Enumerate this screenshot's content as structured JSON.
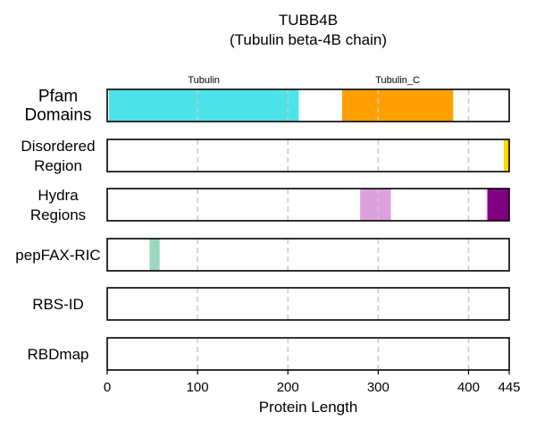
{
  "chart_data": {
    "type": "bar",
    "title": "TUBB4B",
    "subtitle": "(Tubulin beta-4B chain)",
    "xlabel": "Protein Length",
    "xlim": [
      0,
      445
    ],
    "xticks": [
      0,
      100,
      200,
      300,
      400,
      445
    ],
    "grid": {
      "vertical_dashed": [
        100,
        200,
        300,
        400
      ]
    },
    "tracks": [
      {
        "label_lines": [
          "Pfam",
          "Domains"
        ],
        "segments": [
          {
            "name": "Tubulin",
            "start": 2,
            "end": 212,
            "color": "#4de3ea"
          },
          {
            "name": "Tubulin_C",
            "start": 260,
            "end": 383,
            "color": "#ffa000"
          }
        ]
      },
      {
        "label_lines": [
          "Disordered",
          "Region"
        ],
        "segments": [
          {
            "start": 439,
            "end": 445,
            "color": "#ffd700"
          }
        ]
      },
      {
        "label_lines": [
          "Hydra",
          "Regions"
        ],
        "segments": [
          {
            "start": 280,
            "end": 314,
            "color": "#dda0dd"
          },
          {
            "start": 420,
            "end": 421,
            "color": "#dda0dd"
          },
          {
            "start": 421,
            "end": 445,
            "color": "#800080"
          }
        ]
      },
      {
        "label_lines": [
          "pepFAX-RIC"
        ],
        "segments": [
          {
            "start": 47,
            "end": 58,
            "color": "#98d8bf"
          }
        ]
      },
      {
        "label_lines": [
          "RBS-ID"
        ],
        "segments": []
      },
      {
        "label_lines": [
          "RBDmap"
        ],
        "segments": []
      }
    ]
  }
}
